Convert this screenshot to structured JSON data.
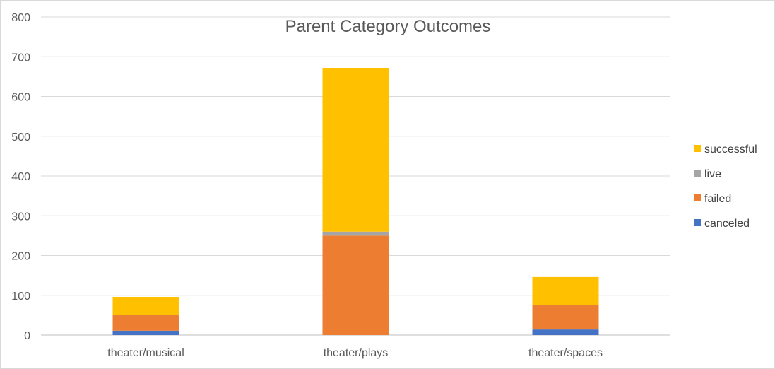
{
  "chart_data": {
    "type": "bar",
    "stacked": true,
    "title": "Parent Category Outcomes",
    "xlabel": "",
    "ylabel": "",
    "categories": [
      "theater/musical",
      "theater/plays",
      "theater/spaces"
    ],
    "series": [
      {
        "name": "canceled",
        "color": "#4472c4",
        "values": [
          11,
          0,
          14
        ]
      },
      {
        "name": "failed",
        "color": "#ed7d31",
        "values": [
          40,
          250,
          61
        ]
      },
      {
        "name": "live",
        "color": "#a5a5a5",
        "values": [
          0,
          10,
          1
        ]
      },
      {
        "name": "successful",
        "color": "#ffc000",
        "values": [
          45,
          412,
          70
        ]
      }
    ],
    "ylim": [
      0,
      800
    ],
    "yticks": [
      "0",
      "100",
      "200",
      "300",
      "400",
      "500",
      "600",
      "700",
      "800"
    ],
    "ytick_values": [
      0,
      100,
      200,
      300,
      400,
      500,
      600,
      700,
      800
    ],
    "grid": true,
    "legend_position": "right",
    "legend_order": [
      "successful",
      "live",
      "failed",
      "canceled"
    ]
  }
}
